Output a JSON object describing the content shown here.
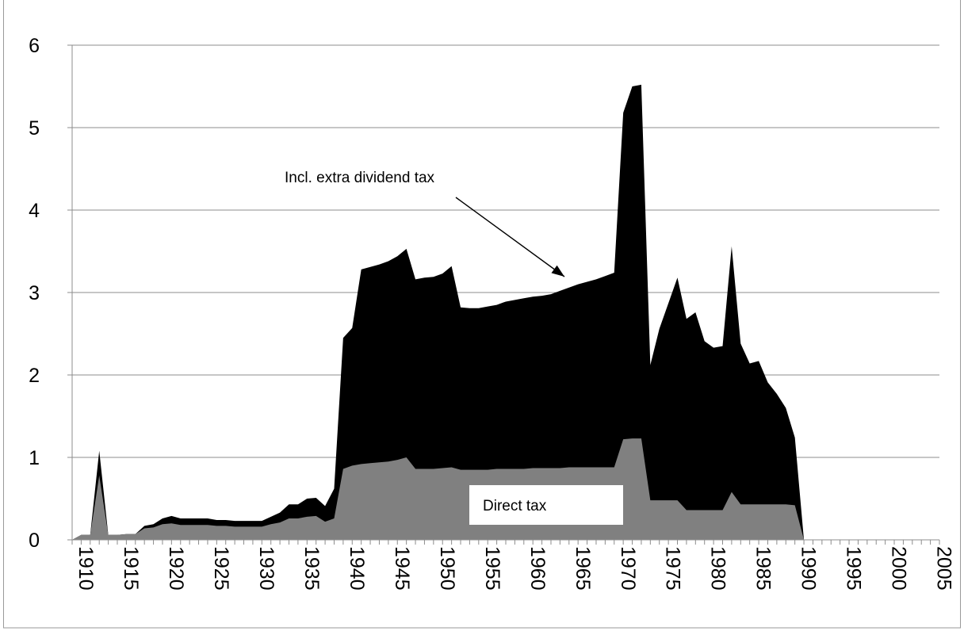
{
  "chart_data": {
    "type": "area",
    "title": "",
    "xlabel": "",
    "ylabel": "",
    "xlim": [
      1910,
      2006
    ],
    "ylim": [
      0,
      6
    ],
    "yticks": [
      0,
      1,
      2,
      3,
      4,
      5,
      6
    ],
    "xticks": [
      1910,
      1915,
      1920,
      1925,
      1930,
      1935,
      1940,
      1945,
      1950,
      1955,
      1960,
      1965,
      1970,
      1975,
      1980,
      1985,
      1990,
      1995,
      2000,
      2005
    ],
    "grid": "horizontal",
    "legend": "none",
    "x": [
      1910,
      1911,
      1912,
      1913,
      1914,
      1915,
      1916,
      1917,
      1918,
      1919,
      1920,
      1921,
      1922,
      1923,
      1924,
      1925,
      1926,
      1927,
      1928,
      1929,
      1930,
      1931,
      1932,
      1933,
      1934,
      1935,
      1936,
      1937,
      1938,
      1939,
      1940,
      1941,
      1942,
      1943,
      1944,
      1945,
      1946,
      1947,
      1948,
      1949,
      1950,
      1951,
      1952,
      1953,
      1954,
      1955,
      1956,
      1957,
      1958,
      1959,
      1960,
      1961,
      1962,
      1963,
      1964,
      1965,
      1966,
      1967,
      1968,
      1969,
      1970,
      1971,
      1972,
      1973,
      1974,
      1975,
      1976,
      1977,
      1978,
      1979,
      1980,
      1981,
      1982,
      1983,
      1984,
      1985,
      1986,
      1987,
      1988,
      1989,
      1990,
      1991
    ],
    "series": [
      {
        "name": "Incl. extra dividend tax",
        "color": "#000000",
        "values": [
          0.0,
          0.06,
          0.06,
          1.08,
          0.06,
          0.06,
          0.07,
          0.07,
          0.17,
          0.19,
          0.26,
          0.29,
          0.26,
          0.26,
          0.26,
          0.26,
          0.24,
          0.24,
          0.23,
          0.23,
          0.23,
          0.23,
          0.28,
          0.33,
          0.43,
          0.43,
          0.5,
          0.51,
          0.41,
          0.62,
          2.45,
          2.57,
          3.28,
          3.31,
          3.34,
          3.38,
          3.44,
          3.53,
          3.16,
          3.18,
          3.19,
          3.23,
          3.32,
          2.82,
          2.81,
          2.81,
          2.83,
          2.85,
          2.89,
          2.91,
          2.93,
          2.95,
          2.96,
          2.98,
          3.02,
          3.06,
          3.1,
          3.13,
          3.16,
          3.2,
          3.24,
          5.18,
          5.5,
          5.52,
          2.12,
          2.56,
          2.87,
          3.18,
          2.68,
          2.76,
          2.41,
          2.33,
          2.35,
          3.56,
          2.38,
          2.14,
          2.17,
          1.91,
          1.77,
          1.6,
          1.24,
          0.0
        ]
      },
      {
        "name": "Direct tax",
        "color": "#808080",
        "values": [
          0.0,
          0.06,
          0.06,
          0.78,
          0.06,
          0.06,
          0.07,
          0.07,
          0.14,
          0.15,
          0.19,
          0.2,
          0.18,
          0.18,
          0.18,
          0.18,
          0.17,
          0.17,
          0.16,
          0.16,
          0.16,
          0.16,
          0.19,
          0.21,
          0.26,
          0.26,
          0.28,
          0.29,
          0.22,
          0.26,
          0.86,
          0.9,
          0.92,
          0.93,
          0.94,
          0.95,
          0.97,
          1.0,
          0.86,
          0.86,
          0.86,
          0.87,
          0.88,
          0.85,
          0.85,
          0.85,
          0.85,
          0.86,
          0.86,
          0.86,
          0.86,
          0.87,
          0.87,
          0.87,
          0.87,
          0.88,
          0.88,
          0.88,
          0.88,
          0.88,
          0.88,
          1.22,
          1.23,
          1.23,
          0.48,
          0.48,
          0.48,
          0.48,
          0.36,
          0.36,
          0.36,
          0.36,
          0.36,
          0.58,
          0.43,
          0.43,
          0.43,
          0.43,
          0.43,
          0.43,
          0.42,
          0.0
        ]
      }
    ],
    "annotations": [
      {
        "text": "Incl. extra dividend tax",
        "arrow_to": [
          1966,
          3.08
        ]
      },
      {
        "text": "Direct tax"
      }
    ]
  }
}
